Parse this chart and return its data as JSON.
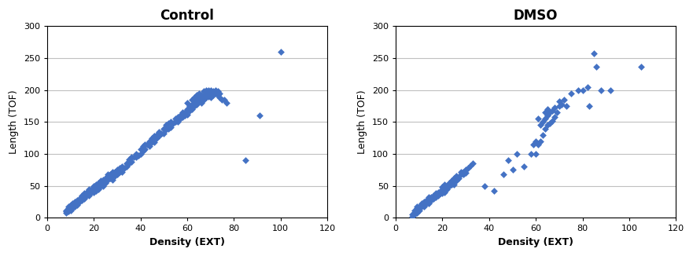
{
  "title1": "Control",
  "title2": "DMSO",
  "xlabel": "Density (EXT)",
  "ylabel": "Length (TOF)",
  "xlim": [
    0,
    120
  ],
  "ylim": [
    0,
    300
  ],
  "xticks": [
    0,
    20,
    40,
    60,
    80,
    100,
    120
  ],
  "yticks": [
    0,
    50,
    100,
    150,
    200,
    250,
    300
  ],
  "marker_color": "#4472C4",
  "marker": "D",
  "marker_size": 20,
  "control_x": [
    8,
    8,
    8,
    9,
    9,
    9,
    9,
    10,
    10,
    10,
    10,
    11,
    11,
    11,
    12,
    12,
    12,
    13,
    13,
    13,
    14,
    14,
    15,
    15,
    15,
    16,
    16,
    16,
    17,
    17,
    18,
    18,
    18,
    19,
    19,
    20,
    20,
    20,
    21,
    21,
    21,
    22,
    22,
    22,
    23,
    23,
    24,
    24,
    24,
    25,
    25,
    26,
    26,
    26,
    27,
    27,
    28,
    28,
    28,
    29,
    29,
    30,
    30,
    31,
    31,
    32,
    32,
    33,
    34,
    34,
    35,
    35,
    36,
    36,
    37,
    38,
    38,
    39,
    40,
    40,
    41,
    41,
    42,
    42,
    43,
    44,
    44,
    45,
    45,
    46,
    46,
    47,
    47,
    48,
    48,
    49,
    50,
    50,
    51,
    51,
    52,
    52,
    53,
    53,
    54,
    55,
    55,
    56,
    56,
    57,
    57,
    58,
    58,
    59,
    59,
    60,
    60,
    60,
    61,
    61,
    62,
    62,
    62,
    63,
    63,
    63,
    64,
    64,
    64,
    65,
    65,
    65,
    66,
    66,
    66,
    67,
    67,
    67,
    68,
    68,
    68,
    69,
    69,
    70,
    70,
    70,
    71,
    71,
    72,
    72,
    73,
    73,
    74,
    74,
    75,
    76,
    77,
    85,
    91,
    100
  ],
  "control_y": [
    8,
    10,
    12,
    10,
    12,
    15,
    18,
    12,
    15,
    18,
    20,
    15,
    18,
    22,
    18,
    22,
    25,
    20,
    25,
    28,
    25,
    30,
    28,
    32,
    35,
    30,
    35,
    38,
    35,
    40,
    35,
    42,
    45,
    40,
    45,
    40,
    45,
    50,
    42,
    48,
    52,
    45,
    50,
    55,
    50,
    58,
    50,
    55,
    60,
    55,
    62,
    60,
    65,
    68,
    62,
    68,
    60,
    65,
    72,
    65,
    72,
    68,
    75,
    72,
    78,
    72,
    80,
    78,
    80,
    85,
    85,
    92,
    88,
    95,
    95,
    95,
    100,
    98,
    100,
    108,
    105,
    112,
    108,
    115,
    115,
    112,
    120,
    118,
    125,
    118,
    128,
    125,
    130,
    128,
    135,
    132,
    132,
    140,
    138,
    145,
    140,
    148,
    142,
    150,
    148,
    150,
    155,
    150,
    158,
    155,
    160,
    158,
    165,
    160,
    165,
    162,
    170,
    180,
    168,
    175,
    170,
    178,
    185,
    175,
    180,
    188,
    178,
    185,
    192,
    182,
    188,
    195,
    180,
    185,
    192,
    185,
    190,
    198,
    188,
    195,
    200,
    190,
    200,
    188,
    195,
    200,
    192,
    198,
    195,
    200,
    192,
    198,
    188,
    195,
    185,
    185,
    180,
    90,
    160,
    260
  ],
  "dmso_x": [
    7,
    7,
    8,
    8,
    8,
    9,
    9,
    9,
    9,
    10,
    10,
    11,
    11,
    12,
    12,
    13,
    13,
    14,
    14,
    14,
    15,
    15,
    16,
    16,
    17,
    17,
    18,
    18,
    19,
    19,
    20,
    20,
    20,
    21,
    21,
    21,
    22,
    22,
    23,
    23,
    24,
    24,
    25,
    25,
    25,
    26,
    26,
    27,
    28,
    28,
    29,
    29,
    30,
    30,
    31,
    32,
    33,
    38,
    42,
    46,
    48,
    50,
    52,
    55,
    58,
    59,
    60,
    60,
    61,
    61,
    62,
    62,
    63,
    63,
    64,
    64,
    64,
    65,
    65,
    65,
    66,
    66,
    67,
    67,
    68,
    68,
    69,
    70,
    70,
    71,
    72,
    73,
    75,
    78,
    80,
    82,
    83,
    85,
    86,
    88,
    92,
    105
  ],
  "dmso_y": [
    2,
    5,
    5,
    8,
    12,
    8,
    12,
    15,
    18,
    12,
    18,
    18,
    22,
    18,
    25,
    22,
    28,
    22,
    28,
    32,
    28,
    32,
    30,
    35,
    32,
    38,
    35,
    40,
    38,
    42,
    38,
    42,
    48,
    40,
    48,
    52,
    45,
    50,
    50,
    55,
    52,
    58,
    52,
    58,
    62,
    58,
    65,
    62,
    68,
    72,
    68,
    72,
    70,
    75,
    78,
    82,
    85,
    50,
    42,
    68,
    90,
    75,
    100,
    80,
    100,
    115,
    100,
    120,
    115,
    155,
    120,
    145,
    130,
    150,
    140,
    155,
    165,
    145,
    160,
    170,
    148,
    165,
    152,
    168,
    158,
    172,
    165,
    175,
    182,
    178,
    185,
    175,
    195,
    200,
    200,
    205,
    175,
    258,
    237,
    200,
    200,
    237
  ]
}
